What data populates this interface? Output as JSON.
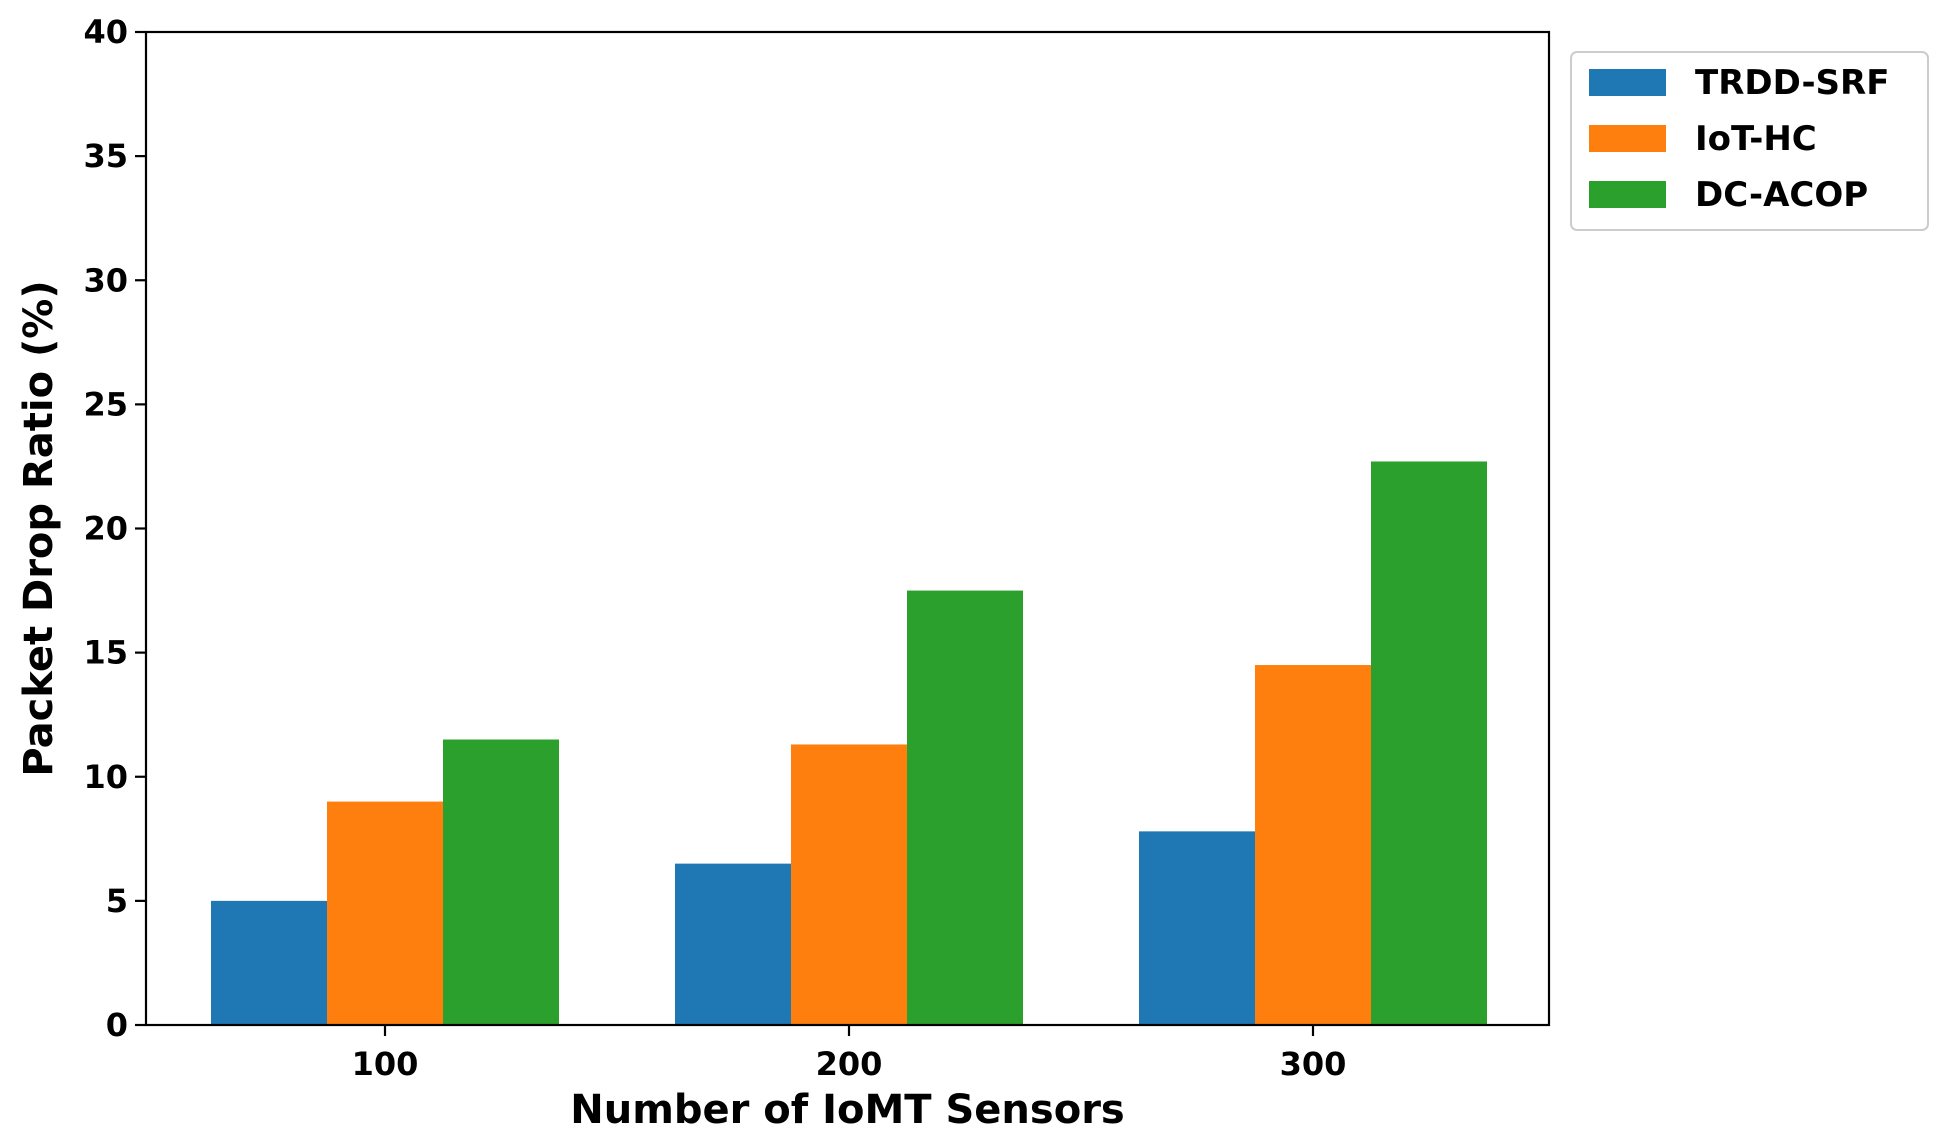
{
  "chart_data": {
    "type": "bar",
    "title": "",
    "xlabel": "Number of IoMT Sensors",
    "ylabel": "Packet Drop Ratio (%)",
    "categories": [
      "100",
      "200",
      "300"
    ],
    "ylim": [
      0,
      40
    ],
    "yticks": [
      "0",
      "5",
      "10",
      "15",
      "20",
      "25",
      "30",
      "35",
      "40"
    ],
    "grid": false,
    "legend_position": "outside top-right",
    "series": [
      {
        "name": "TRDD-SRF",
        "color": "#1f77b4",
        "values": [
          5.0,
          6.5,
          7.8
        ]
      },
      {
        "name": "IoT-HC",
        "color": "#ff7f0e",
        "values": [
          9.0,
          11.3,
          14.5
        ]
      },
      {
        "name": "DC-ACOP",
        "color": "#2ca02c",
        "values": [
          11.5,
          17.5,
          22.7
        ]
      }
    ]
  }
}
